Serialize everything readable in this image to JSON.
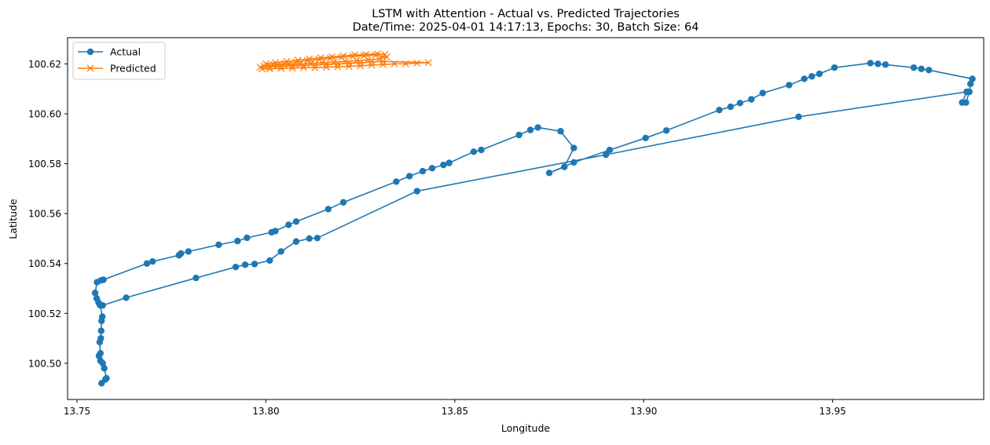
{
  "chart_data": {
    "type": "line",
    "title": "LSTM with Attention - Actual vs. Predicted Trajectories",
    "subtitle": "Date/Time: 2025-04-01 14:17:13, Epochs: 30, Batch Size: 64",
    "xlabel": "Longitude",
    "ylabel": "Latitude",
    "xlim": [
      13.7475,
      13.99
    ],
    "ylim": [
      100.4855,
      100.6305
    ],
    "xticks": [
      13.75,
      13.8,
      13.85,
      13.9,
      13.95
    ],
    "xtick_labels": [
      "13.75",
      "13.80",
      "13.85",
      "13.90",
      "13.95"
    ],
    "yticks": [
      100.5,
      100.52,
      100.54,
      100.56,
      100.58,
      100.6,
      100.62
    ],
    "ytick_labels": [
      "100.50",
      "100.52",
      "100.54",
      "100.56",
      "100.58",
      "100.60",
      "100.62"
    ],
    "grid": false,
    "legend_position": "top-left",
    "series": [
      {
        "name": "Actual",
        "color": "#1f77b4",
        "marker": "circle",
        "points": [
          [
            13.7565,
            100.492
          ],
          [
            13.7575,
            100.4935
          ],
          [
            13.7578,
            100.494
          ],
          [
            13.7572,
            100.498
          ],
          [
            13.7568,
            100.5
          ],
          [
            13.7562,
            100.501
          ],
          [
            13.7558,
            100.503
          ],
          [
            13.7562,
            100.504
          ],
          [
            13.756,
            100.5085
          ],
          [
            13.7563,
            100.51
          ],
          [
            13.7564,
            100.513
          ],
          [
            13.7565,
            100.517
          ],
          [
            13.7567,
            100.5187
          ],
          [
            13.7561,
            100.5233
          ],
          [
            13.7557,
            100.5243
          ],
          [
            13.7552,
            100.526
          ],
          [
            13.7548,
            100.5282
          ],
          [
            13.7553,
            100.5325
          ],
          [
            13.7563,
            100.5332
          ],
          [
            13.757,
            100.5335
          ],
          [
            13.7685,
            100.54
          ],
          [
            13.77,
            100.5408
          ],
          [
            13.777,
            100.5433
          ],
          [
            13.7775,
            100.544
          ],
          [
            13.7795,
            100.5448
          ],
          [
            13.7875,
            100.5475
          ],
          [
            13.7925,
            100.549
          ],
          [
            13.795,
            100.5503
          ],
          [
            13.8015,
            100.5525
          ],
          [
            13.8025,
            100.553
          ],
          [
            13.806,
            100.5555
          ],
          [
            13.808,
            100.5568
          ],
          [
            13.8165,
            100.5618
          ],
          [
            13.8205,
            100.5645
          ],
          [
            13.8345,
            100.5728
          ],
          [
            13.838,
            100.575
          ],
          [
            13.8415,
            100.577
          ],
          [
            13.844,
            100.5782
          ],
          [
            13.847,
            100.5795
          ],
          [
            13.8485,
            100.5803
          ],
          [
            13.855,
            100.5848
          ],
          [
            13.857,
            100.5855
          ],
          [
            13.867,
            100.5915
          ],
          [
            13.87,
            100.5935
          ],
          [
            13.872,
            100.5945
          ],
          [
            13.878,
            100.593
          ],
          [
            13.8815,
            100.5863
          ],
          [
            13.879,
            100.5787
          ],
          [
            13.875,
            100.5763
          ],
          [
            13.8815,
            100.5805
          ],
          [
            13.891,
            100.5855
          ],
          [
            13.9005,
            100.5903
          ],
          [
            13.906,
            100.5933
          ],
          [
            13.92,
            100.6015
          ],
          [
            13.923,
            100.6028
          ],
          [
            13.9255,
            100.6043
          ],
          [
            13.9285,
            100.6058
          ],
          [
            13.9315,
            100.6083
          ],
          [
            13.9385,
            100.6115
          ],
          [
            13.9425,
            100.614
          ],
          [
            13.9445,
            100.615
          ],
          [
            13.9465,
            100.616
          ],
          [
            13.9505,
            100.6185
          ],
          [
            13.96,
            100.6203
          ],
          [
            13.962,
            100.62
          ],
          [
            13.964,
            100.6197
          ],
          [
            13.9715,
            100.6185
          ],
          [
            13.9735,
            100.618
          ],
          [
            13.9755,
            100.6175
          ],
          [
            13.987,
            100.614
          ],
          [
            13.9865,
            100.612
          ],
          [
            13.9862,
            100.6088
          ],
          [
            13.9853,
            100.6045
          ],
          [
            13.9843,
            100.6045
          ],
          [
            13.9855,
            100.6088
          ],
          [
            13.941,
            100.5988
          ],
          [
            13.89,
            100.5836
          ],
          [
            13.84,
            100.569
          ],
          [
            13.8136,
            100.5502
          ],
          [
            13.8115,
            100.55
          ],
          [
            13.808,
            100.5488
          ],
          [
            13.804,
            100.5448
          ],
          [
            13.801,
            100.5412
          ],
          [
            13.797,
            100.5398
          ],
          [
            13.7945,
            100.5395
          ],
          [
            13.792,
            100.5386
          ],
          [
            13.7815,
            100.5342
          ],
          [
            13.763,
            100.5263
          ],
          [
            13.7568,
            100.5232
          ]
        ]
      },
      {
        "name": "Predicted",
        "color": "#ff7f0e",
        "marker": "x",
        "points": [
          [
            13.799,
            100.618
          ],
          [
            13.801,
            100.618
          ],
          [
            13.804,
            100.6182
          ],
          [
            13.807,
            100.6183
          ],
          [
            13.81,
            100.6185
          ],
          [
            13.813,
            100.6185
          ],
          [
            13.816,
            100.6187
          ],
          [
            13.819,
            100.6188
          ],
          [
            13.822,
            100.619
          ],
          [
            13.825,
            100.6192
          ],
          [
            13.828,
            100.6195
          ],
          [
            13.831,
            100.6197
          ],
          [
            13.834,
            100.62
          ],
          [
            13.837,
            100.62
          ],
          [
            13.84,
            100.6203
          ],
          [
            13.843,
            100.6205
          ],
          [
            13.831,
            100.621
          ],
          [
            13.828,
            100.6208
          ],
          [
            13.825,
            100.6205
          ],
          [
            13.822,
            100.6203
          ],
          [
            13.819,
            100.62
          ],
          [
            13.816,
            100.6198
          ],
          [
            13.813,
            100.6196
          ],
          [
            13.81,
            100.6194
          ],
          [
            13.807,
            100.6192
          ],
          [
            13.804,
            100.619
          ],
          [
            13.801,
            100.6188
          ],
          [
            13.7985,
            100.6186
          ],
          [
            13.7995,
            100.6192
          ],
          [
            13.802,
            100.6197
          ],
          [
            13.805,
            100.6202
          ],
          [
            13.808,
            100.6207
          ],
          [
            13.811,
            100.6213
          ],
          [
            13.814,
            100.6218
          ],
          [
            13.817,
            100.6223
          ],
          [
            13.82,
            100.6227
          ],
          [
            13.823,
            100.6231
          ],
          [
            13.826,
            100.6233
          ],
          [
            13.829,
            100.6235
          ],
          [
            13.832,
            100.6228
          ],
          [
            13.83,
            100.622
          ],
          [
            13.827,
            100.6216
          ],
          [
            13.824,
            100.6213
          ],
          [
            13.821,
            100.621
          ],
          [
            13.818,
            100.6207
          ],
          [
            13.815,
            100.6204
          ],
          [
            13.812,
            100.6202
          ],
          [
            13.809,
            100.6199
          ],
          [
            13.806,
            100.6197
          ],
          [
            13.803,
            100.6195
          ],
          [
            13.8005,
            100.6194
          ],
          [
            13.8,
            100.62
          ],
          [
            13.8025,
            100.6205
          ],
          [
            13.8055,
            100.621
          ],
          [
            13.8085,
            100.6215
          ],
          [
            13.8115,
            100.622
          ],
          [
            13.8145,
            100.6224
          ],
          [
            13.8175,
            100.6228
          ],
          [
            13.8205,
            100.6232
          ],
          [
            13.8235,
            100.6236
          ],
          [
            13.8265,
            100.6238
          ],
          [
            13.8295,
            100.624
          ],
          [
            13.8315,
            100.6238
          ]
        ]
      }
    ]
  }
}
